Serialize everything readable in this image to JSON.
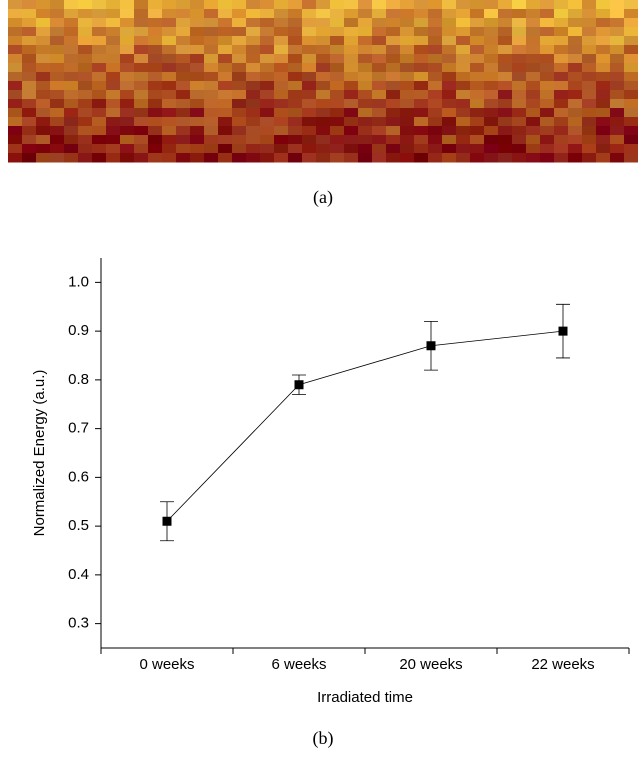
{
  "figure": {
    "caption_a": "(a)",
    "caption_b": "(b)"
  },
  "chart_data": {
    "type": "line",
    "xlabel": "Irradiated time",
    "ylabel": "Normalized Energy (a.u.)",
    "categories": [
      "0 weeks",
      "6 weeks",
      "20 weeks",
      "22 weeks"
    ],
    "values": [
      0.51,
      0.79,
      0.87,
      0.9
    ],
    "errors": [
      0.04,
      0.02,
      0.05,
      0.055
    ],
    "color": "#000000",
    "ylim": [
      0.25,
      1.05
    ],
    "yticks": [
      0.3,
      0.4,
      0.5,
      0.6,
      0.7,
      0.8,
      0.9,
      {
        "value": 1,
        "label": "1.0"
      }
    ]
  }
}
